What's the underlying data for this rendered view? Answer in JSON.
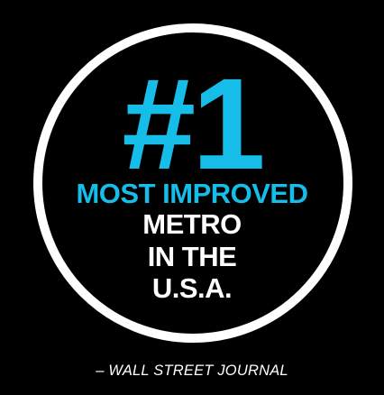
{
  "badge": {
    "rank": "#1",
    "lines": [
      "MOST IMPROVED",
      "METRO",
      "IN THE",
      "U.S.A."
    ],
    "accent_color": "#16bde8",
    "text_color": "#ffffff",
    "background_color": "#000000"
  },
  "attribution": "– WALL STREET JOURNAL"
}
